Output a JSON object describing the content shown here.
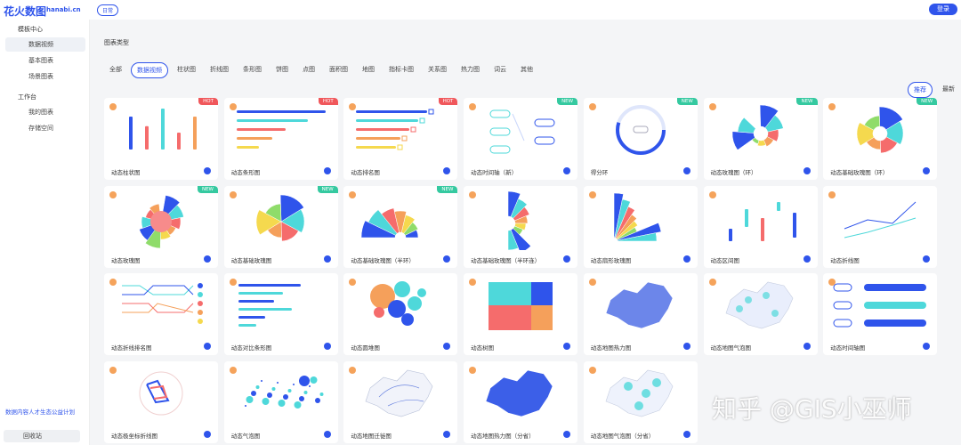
{
  "header": {
    "logo": "花火数图",
    "logo_sub": "hanabi.cn",
    "badge": "日常",
    "login": "登录"
  },
  "sidebar": {
    "groups": [
      {
        "title": "模板中心",
        "items": [
          "数据视频",
          "基本图表",
          "场景图表"
        ]
      },
      {
        "title": "工作台",
        "items": [
          "我的图表",
          "存储空间"
        ]
      }
    ],
    "promo": "数据内容人才生态公益计划",
    "trash": "回收站"
  },
  "main": {
    "section_title": "图表类型",
    "tabs": [
      "全部",
      "数据视频",
      "柱状图",
      "折线图",
      "条形图",
      "饼图",
      "点图",
      "面积图",
      "地图",
      "指标卡图",
      "关系图",
      "热力图",
      "词云",
      "其他"
    ],
    "active_tab": 1,
    "sort": [
      "推荐",
      "最新"
    ],
    "cards": [
      {
        "label": "动态柱状图",
        "badge": "HOT"
      },
      {
        "label": "动态条形图",
        "badge": "HOT"
      },
      {
        "label": "动态排名图",
        "badge": "HOT"
      },
      {
        "label": "动态时间轴（新）",
        "badge": "NEW"
      },
      {
        "label": "得分环",
        "badge": "NEW"
      },
      {
        "label": "动态玫瑰图（环）",
        "badge": "NEW"
      },
      {
        "label": "动态基础玫瑰图（环）",
        "badge": "NEW"
      },
      {
        "label": "动态玫瑰图",
        "badge": "NEW"
      },
      {
        "label": "动态基础玫瑰图",
        "badge": "NEW"
      },
      {
        "label": "动态基础玫瑰图（半环）",
        "badge": "NEW"
      },
      {
        "label": "动态基础玫瑰图（半环连）"
      },
      {
        "label": "动态扇形玫瑰图"
      },
      {
        "label": "动态区间图"
      },
      {
        "label": "动态折线图"
      },
      {
        "label": "动态折线排名图"
      },
      {
        "label": "动态对比条形图"
      },
      {
        "label": "动态圆堆图"
      },
      {
        "label": "动态树图"
      },
      {
        "label": "动态地图热力图"
      },
      {
        "label": "动态地图气泡图"
      },
      {
        "label": "动态时间轴图"
      },
      {
        "label": "动态极坐标折线图"
      },
      {
        "label": "动态气泡图"
      },
      {
        "label": "动态地图迁徙图"
      },
      {
        "label": "动态地图热力图（分省）"
      },
      {
        "label": "动态地图气泡图（分省）"
      }
    ]
  },
  "watermark": "知乎 @GIS小巫师"
}
